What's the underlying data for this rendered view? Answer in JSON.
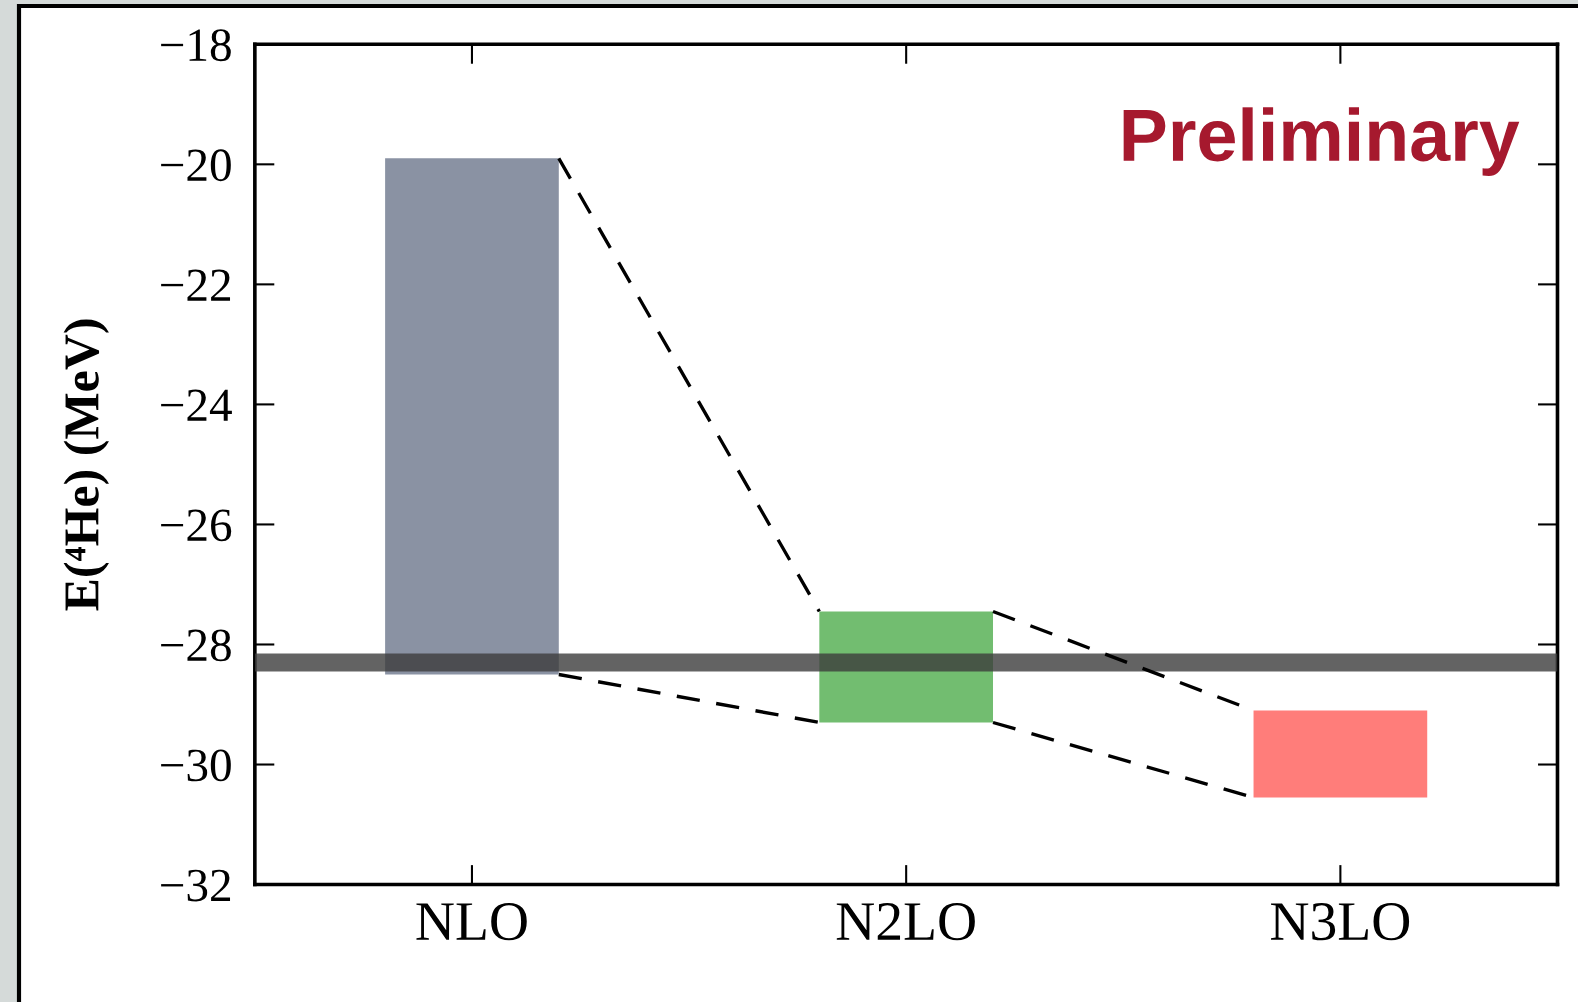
{
  "chart_data": {
    "type": "bar",
    "ylabel": "E(⁴He) (MeV)",
    "categories": [
      "NLO",
      "N2LO",
      "N3LO"
    ],
    "base": [
      -28.5,
      -29.3,
      -30.55
    ],
    "values": [
      8.6,
      1.85,
      1.45
    ],
    "colors": [
      "#8a92a3",
      "#72bd70",
      "#ff7d7a"
    ],
    "line_style": "dashed",
    "bands": [
      {
        "axis": "y",
        "from": -28.45,
        "to": -28.15,
        "color": "#3c3c3c"
      }
    ],
    "ylim": [
      -32,
      -18
    ],
    "yticks": [
      -32,
      -30,
      -28,
      -26,
      -24,
      -22,
      -20,
      -18
    ],
    "annotations": [
      "Preliminary"
    ]
  }
}
